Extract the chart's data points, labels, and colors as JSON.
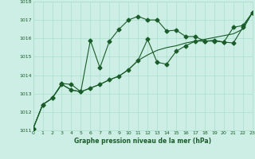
{
  "title": "Graphe pression niveau de la mer (hPa)",
  "bg_color": "#cceee4",
  "grid_color": "#aaddcc",
  "line_color": "#1a5c2a",
  "xlim": [
    0,
    23
  ],
  "ylim": [
    1011,
    1018
  ],
  "yticks": [
    1011,
    1012,
    1013,
    1014,
    1015,
    1016,
    1017,
    1018
  ],
  "xticks": [
    0,
    1,
    2,
    3,
    4,
    5,
    6,
    7,
    8,
    9,
    10,
    11,
    12,
    13,
    14,
    15,
    16,
    17,
    18,
    19,
    20,
    21,
    22,
    23
  ],
  "line1_x": [
    0,
    1,
    2,
    3,
    4,
    5,
    6,
    7,
    8,
    9,
    10,
    11,
    12,
    13,
    14,
    15,
    16,
    17,
    18,
    19,
    20,
    21,
    22,
    23
  ],
  "line1_y": [
    1011.1,
    1012.4,
    1012.75,
    1013.5,
    1013.2,
    1013.1,
    1013.3,
    1013.5,
    1013.75,
    1013.95,
    1014.3,
    1014.8,
    1015.1,
    1015.35,
    1015.5,
    1015.6,
    1015.75,
    1015.85,
    1015.95,
    1016.05,
    1016.15,
    1016.25,
    1016.5,
    1017.4
  ],
  "line2_x": [
    0,
    1,
    2,
    3,
    4,
    5,
    6,
    7,
    8,
    9,
    10,
    11,
    12,
    13,
    14,
    15,
    16,
    17,
    18,
    19,
    20,
    21,
    22,
    23
  ],
  "line2_y": [
    1011.1,
    1012.4,
    1012.75,
    1013.5,
    1013.2,
    1013.1,
    1015.9,
    1014.4,
    1015.85,
    1016.5,
    1017.0,
    1017.2,
    1017.0,
    1017.0,
    1016.4,
    1016.45,
    1016.1,
    1016.1,
    1015.85,
    1015.85,
    1015.8,
    1015.75,
    1016.6,
    1017.4
  ],
  "line3_x": [
    0,
    1,
    2,
    3,
    4,
    5,
    6,
    7,
    8,
    9,
    10,
    11,
    12,
    13,
    14,
    15,
    16,
    17,
    18,
    19,
    20,
    21,
    22,
    23
  ],
  "line3_y": [
    1011.1,
    1012.4,
    1012.75,
    1013.55,
    1013.5,
    1013.1,
    1013.3,
    1013.5,
    1013.75,
    1013.95,
    1014.3,
    1014.8,
    1015.95,
    1014.7,
    1014.6,
    1015.3,
    1015.6,
    1015.85,
    1015.85,
    1015.9,
    1015.8,
    1016.6,
    1016.7,
    1017.4
  ]
}
